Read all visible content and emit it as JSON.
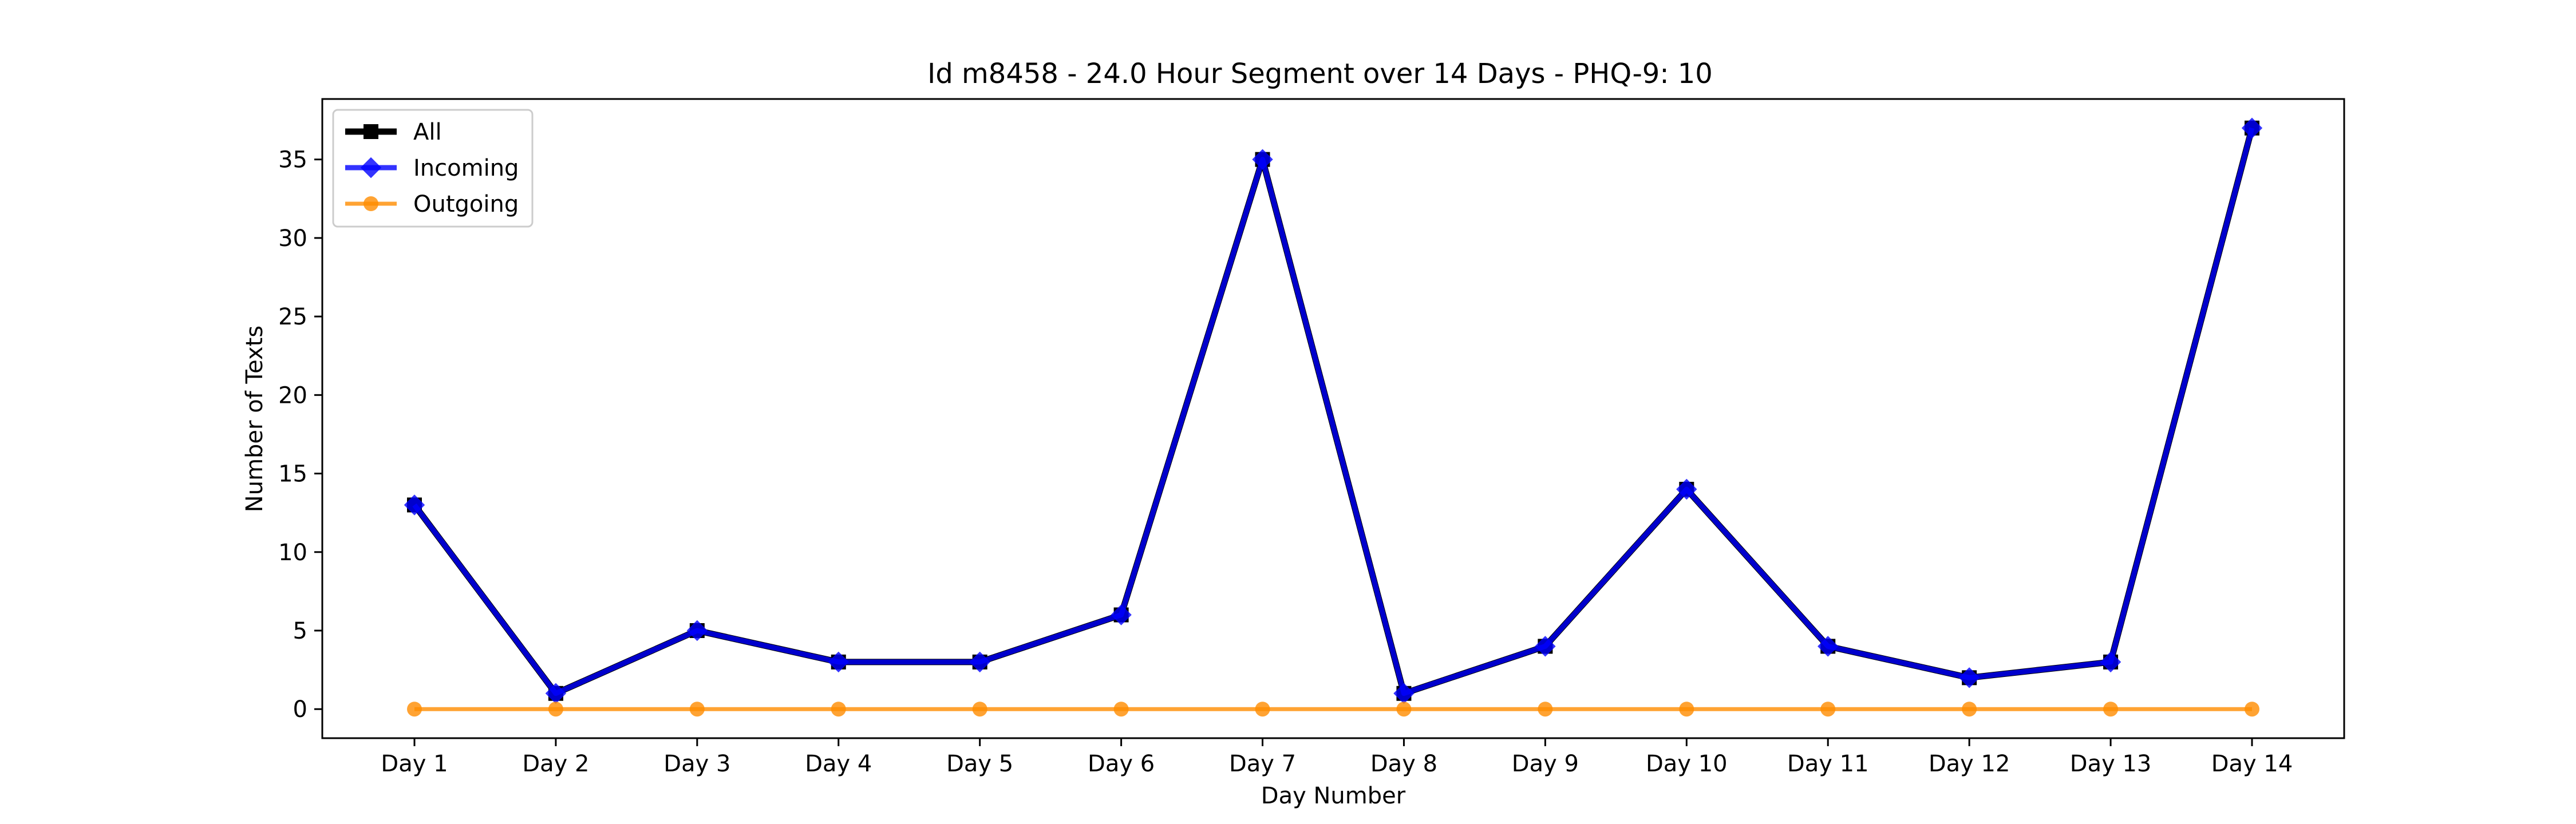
{
  "chart_data": {
    "type": "line",
    "title": "Id m8458 - 24.0 Hour Segment over 14 Days - PHQ-9: 10",
    "xlabel": "Day Number",
    "ylabel": "Number of Texts",
    "categories": [
      "Day 1",
      "Day 2",
      "Day 3",
      "Day 4",
      "Day 5",
      "Day 6",
      "Day 7",
      "Day 8",
      "Day 9",
      "Day 10",
      "Day 11",
      "Day 12",
      "Day 13",
      "Day 14"
    ],
    "ylim": [
      -1.85,
      38.85
    ],
    "yticks": [
      0,
      5,
      10,
      15,
      20,
      25,
      30,
      35
    ],
    "grid": false,
    "legend_position": "top-left",
    "series": [
      {
        "name": "All",
        "color": "#000000",
        "marker": "square",
        "values": [
          13,
          1,
          5,
          3,
          3,
          6,
          35,
          1,
          4,
          14,
          4,
          2,
          3,
          37
        ]
      },
      {
        "name": "Incoming",
        "color": "#0000ff",
        "marker": "diamond",
        "values": [
          13,
          1,
          5,
          3,
          3,
          6,
          35,
          1,
          4,
          14,
          4,
          2,
          3,
          37
        ]
      },
      {
        "name": "Outgoing",
        "color": "#ff8c00",
        "marker": "circle",
        "values": [
          0,
          0,
          0,
          0,
          0,
          0,
          0,
          0,
          0,
          0,
          0,
          0,
          0,
          0
        ]
      }
    ]
  }
}
